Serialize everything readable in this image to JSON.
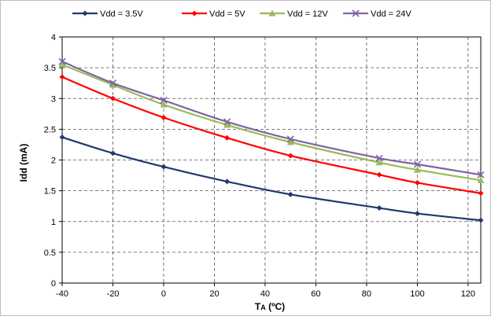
{
  "chart_data": {
    "type": "line",
    "xlabel": "TA (ºC)",
    "xlabel_main": "T",
    "xlabel_sub": "A",
    "xlabel_rest": " (ºC)",
    "ylabel": "Idd  (mA)",
    "xlim": [
      -40,
      125
    ],
    "ylim": [
      0,
      4
    ],
    "x_ticks": [
      -40,
      -20,
      0,
      20,
      40,
      60,
      80,
      100,
      120
    ],
    "y_ticks": [
      0,
      0.5,
      1,
      1.5,
      2,
      2.5,
      3,
      3.5,
      4
    ],
    "x_tick_labels": [
      "-40",
      "-20",
      "0",
      "20",
      "40",
      "60",
      "80",
      "100",
      "120"
    ],
    "y_tick_labels": [
      "0",
      "0.5",
      "1",
      "1.5",
      "2",
      "2.5",
      "3",
      "3.5",
      "4"
    ],
    "grid": true,
    "legend_position": "top",
    "x": [
      -40,
      -20,
      0,
      25,
      50,
      85,
      100,
      125
    ],
    "series": [
      {
        "name": "Vdd = 3.5V",
        "color": "#1F3A6B",
        "marker": "diamond",
        "values": [
          2.37,
          2.11,
          1.89,
          1.65,
          1.44,
          1.22,
          1.13,
          1.02
        ]
      },
      {
        "name": "Vdd = 5V",
        "color": "#FF0000",
        "marker": "diamond",
        "values": [
          3.35,
          3.0,
          2.69,
          2.36,
          2.07,
          1.76,
          1.63,
          1.46
        ]
      },
      {
        "name": "Vdd = 12V",
        "color": "#9BBB59",
        "marker": "triangle",
        "values": [
          3.55,
          3.22,
          2.9,
          2.57,
          2.29,
          1.96,
          1.84,
          1.67
        ]
      },
      {
        "name": "Vdd = 24V",
        "color": "#8064A2",
        "marker": "x",
        "values": [
          3.6,
          3.25,
          2.97,
          2.62,
          2.34,
          2.03,
          1.93,
          1.76
        ]
      }
    ]
  }
}
